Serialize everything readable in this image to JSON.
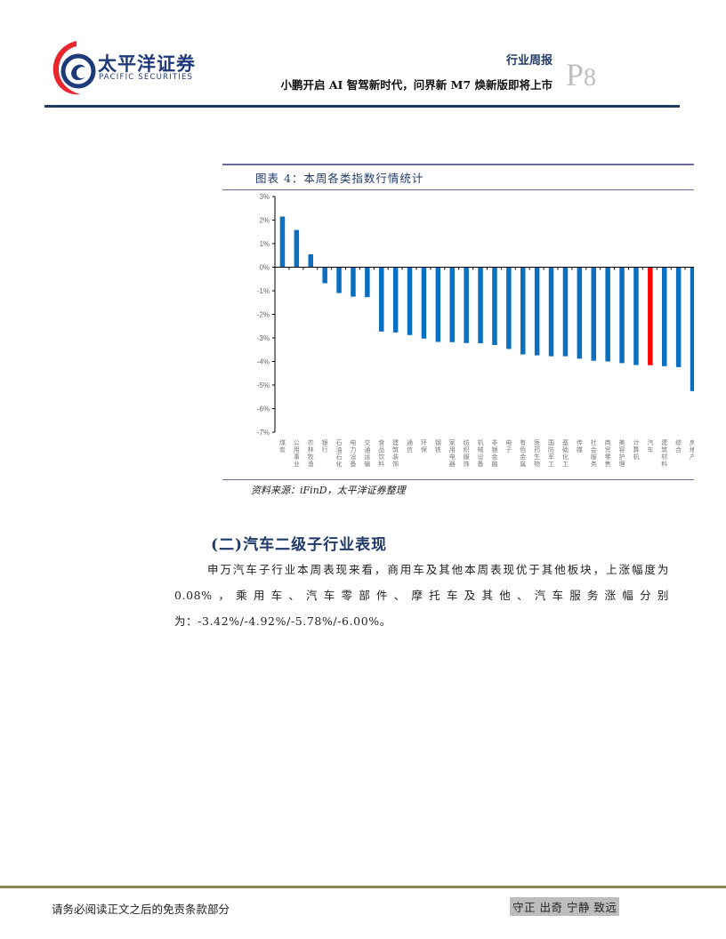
{
  "header": {
    "logo_cn": "太平洋证券",
    "logo_en": "PACIFIC SECURITIES",
    "report_type": "行业周报",
    "report_title": "小鹏开启 AI 智驾新时代，问界新 M7 焕新版即将上市",
    "page_prefix": "P",
    "page_number": "8"
  },
  "figure": {
    "title": "图表 4：本周各类指数行情统计",
    "source": "资料来源：iFinD，太平洋证券整理"
  },
  "chart_data": {
    "type": "bar",
    "title": "本周各类指数行情统计",
    "xlabel": "",
    "ylabel": "",
    "ylim": [
      -7,
      3
    ],
    "yticks": [
      "3%",
      "2%",
      "1%",
      "0%",
      "-1%",
      "-2%",
      "-3%",
      "-4%",
      "-5%",
      "-6%",
      "-7%"
    ],
    "grid": false,
    "legend": null,
    "highlight_category": "汽车",
    "colors": {
      "default": "#0a6fbf",
      "highlight": "#ff0000"
    },
    "categories": [
      "煤炭",
      "公用事业",
      "农林牧渔",
      "银行",
      "石油石化",
      "电力设备",
      "交通运输",
      "食品饮料",
      "建筑装饰",
      "通信",
      "环保",
      "钢铁",
      "家用电器",
      "纺织服饰",
      "机械设备",
      "非银金融",
      "电子",
      "有色金属",
      "医药生物",
      "国防军工",
      "基础化工",
      "传媒",
      "社会服务",
      "商贸零售",
      "美容护理",
      "计算机",
      "汽车",
      "建筑材料",
      "综合",
      "房地产"
    ],
    "values": [
      2.15,
      1.58,
      0.55,
      -0.68,
      -1.1,
      -1.25,
      -1.27,
      -2.73,
      -2.77,
      -2.88,
      -3.03,
      -3.17,
      -3.18,
      -3.22,
      -3.23,
      -3.3,
      -3.47,
      -3.7,
      -3.74,
      -3.78,
      -3.78,
      -3.88,
      -3.97,
      -4.0,
      -4.07,
      -4.15,
      -4.16,
      -4.2,
      -4.24,
      -5.26
    ]
  },
  "section": {
    "heading": "(二)汽车二级子行业表现",
    "paragraph": "申万汽车子行业本周表现来看，商用车及其他本周表现优于其他板块，上涨幅度为0.08%，乘用车、汽车零部件、摩托车及其他、汽车服务涨幅分别为：-3.42%/-4.92%/-5.78%/-6.00%。"
  },
  "footer": {
    "disclaimer": "请务必阅读正文之后的免责条款部分",
    "motto": "守正 出奇 宁静 致远"
  }
}
